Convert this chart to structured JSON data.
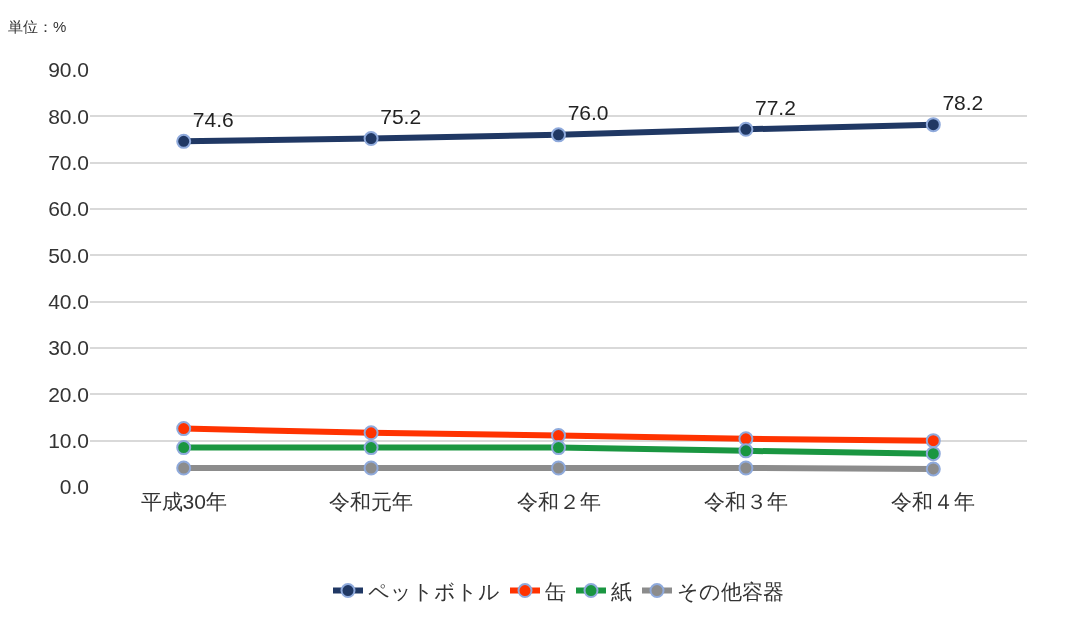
{
  "chart_data": {
    "type": "line",
    "annotations": [
      "単位：%"
    ],
    "categories": [
      "平成30年",
      "令和元年",
      "令和２年",
      "令和３年",
      "令和４年"
    ],
    "series": [
      {
        "name": "ペットボトル",
        "color": "#203864",
        "values": [
          74.6,
          75.2,
          76.0,
          77.2,
          78.2
        ],
        "value_labels": [
          "74.6",
          "75.2",
          "76.0",
          "77.2",
          "78.2"
        ]
      },
      {
        "name": "缶",
        "color": "#ff3300",
        "values": [
          12.6,
          11.7,
          11.1,
          10.4,
          10.0
        ]
      },
      {
        "name": "紙",
        "color": "#1a9641",
        "values": [
          8.5,
          8.5,
          8.5,
          7.8,
          7.2
        ]
      },
      {
        "name": "その他容器",
        "color": "#8c8c8c",
        "values": [
          4.1,
          4.1,
          4.1,
          4.1,
          3.9
        ]
      }
    ],
    "ylim": [
      0,
      90
    ],
    "yticks": [
      {
        "value": 0,
        "label": "0.0"
      },
      {
        "value": 10,
        "label": "10.0"
      },
      {
        "value": 20,
        "label": "20.0"
      },
      {
        "value": 30,
        "label": "30.0"
      },
      {
        "value": 40,
        "label": "40.0"
      },
      {
        "value": 50,
        "label": "50.0"
      },
      {
        "value": 60,
        "label": "60.0"
      },
      {
        "value": 70,
        "label": "70.0"
      },
      {
        "value": 80,
        "label": "80.0"
      },
      {
        "value": 90,
        "label": "90.0"
      }
    ],
    "grid": "y",
    "legend": "bottom",
    "marker": "circle",
    "line_style": "solid"
  }
}
